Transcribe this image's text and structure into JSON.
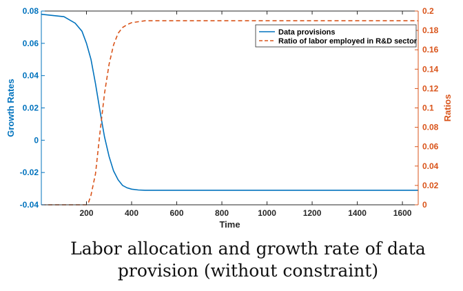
{
  "chart_data": {
    "type": "line",
    "title": "",
    "xlabel": "Time",
    "ylabel_left": "Growth Rates",
    "ylabel_right": "Ratios",
    "xlim": [
      0,
      1670
    ],
    "ylim_left": [
      -0.04,
      0.08
    ],
    "ylim_right": [
      0,
      0.2
    ],
    "xticks": [
      200,
      400,
      600,
      800,
      1000,
      1200,
      1400,
      1600
    ],
    "xtick_labels": [
      "200",
      "400",
      "600",
      "800",
      "1000",
      "1200",
      "1400",
      "1600"
    ],
    "yticks_left": [
      -0.04,
      -0.02,
      0,
      0.02,
      0.04,
      0.06,
      0.08
    ],
    "ytick_labels_left": [
      "-0.04",
      "-0.02",
      "0",
      "0.02",
      "0.04",
      "0.06",
      "0.08"
    ],
    "yticks_right": [
      0,
      0.02,
      0.04,
      0.06,
      0.08,
      0.1,
      0.12,
      0.14,
      0.16,
      0.18,
      0.2
    ],
    "ytick_labels_right": [
      "0",
      "0.02",
      "0.04",
      "0.06",
      "0.08",
      "0.1",
      "0.12",
      "0.14",
      "0.16",
      "0.18",
      "0.2"
    ],
    "legend_position": "top-right",
    "grid": false,
    "series": [
      {
        "name": "Data provisions",
        "axis": "left",
        "style": "solid",
        "color": "#0072BD",
        "x": [
          0,
          100,
          150,
          180,
          200,
          220,
          240,
          260,
          270,
          280,
          300,
          320,
          340,
          360,
          380,
          400,
          430,
          460,
          500,
          600,
          800,
          1000,
          1200,
          1400,
          1600,
          1670
        ],
        "y": [
          0.078,
          0.0765,
          0.0725,
          0.0675,
          0.06,
          0.05,
          0.035,
          0.018,
          0.01,
          0.002,
          -0.01,
          -0.019,
          -0.0245,
          -0.028,
          -0.0295,
          -0.0303,
          -0.0308,
          -0.031,
          -0.031,
          -0.031,
          -0.031,
          -0.031,
          -0.031,
          -0.031,
          -0.031,
          -0.031
        ]
      },
      {
        "name": "Ratio of labor employed in R&D sector",
        "axis": "right",
        "style": "dashed",
        "color": "#D95319",
        "x": [
          0,
          200,
          210,
          220,
          240,
          260,
          280,
          300,
          320,
          340,
          360,
          380,
          400,
          430,
          460,
          500,
          600,
          800,
          1000,
          1200,
          1400,
          1600,
          1670
        ],
        "y": [
          0,
          0,
          0.003,
          0.01,
          0.032,
          0.075,
          0.115,
          0.145,
          0.165,
          0.177,
          0.183,
          0.186,
          0.188,
          0.189,
          0.19,
          0.19,
          0.19,
          0.19,
          0.19,
          0.19,
          0.19,
          0.19,
          0.19
        ]
      }
    ]
  },
  "caption": {
    "line1": "Labor allocation and growth rate of data",
    "line2": "provision (without constraint)"
  }
}
